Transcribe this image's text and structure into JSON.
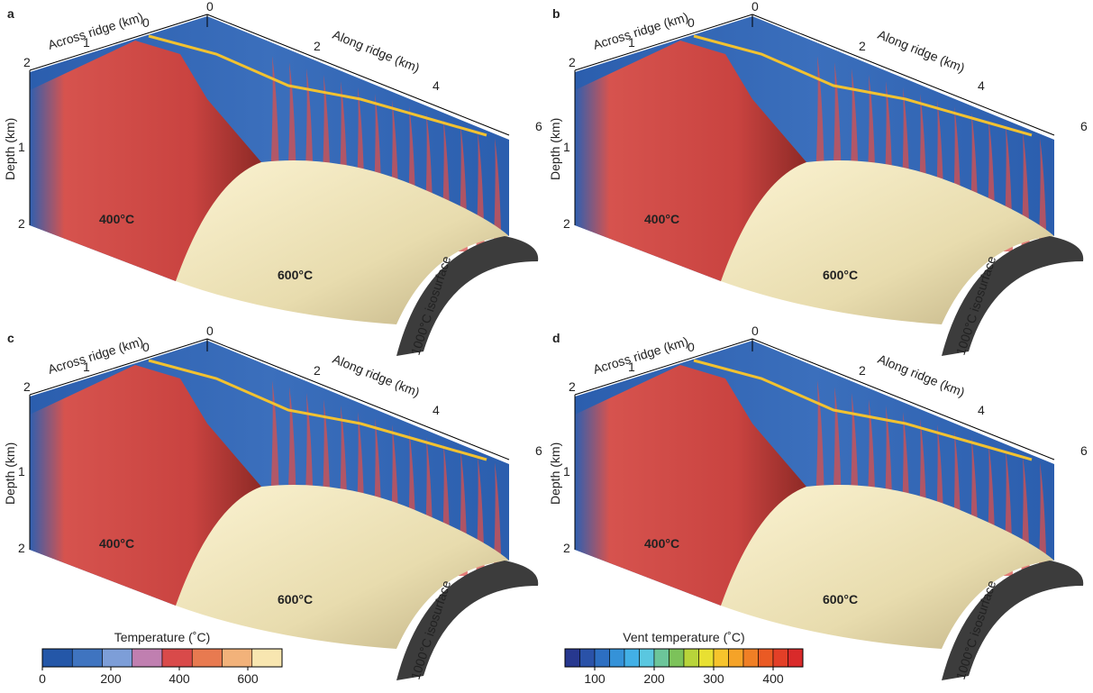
{
  "panels": [
    {
      "label": "a",
      "across_label": "Across ridge (km)",
      "along_label": "Along ridge (km)",
      "depth_label": "Depth (km)",
      "across_ticks": [
        "2",
        "1",
        "0"
      ],
      "along_ticks": [
        "0",
        "2",
        "4",
        "6"
      ],
      "depth_ticks": [
        "1",
        "2"
      ],
      "low_label": "400°C",
      "high_label": "600°C",
      "isosurface_label": "1000°C isosurface"
    },
    {
      "label": "b",
      "across_label": "Across ridge (km)",
      "along_label": "Along ridge (km)",
      "depth_label": "Depth (km)",
      "across_ticks": [
        "2",
        "1",
        "0"
      ],
      "along_ticks": [
        "0",
        "2",
        "4",
        "6"
      ],
      "depth_ticks": [
        "1",
        "2"
      ],
      "low_label": "400°C",
      "high_label": "600°C",
      "isosurface_label": "1000°C isosurface"
    },
    {
      "label": "c",
      "across_label": "Across ridge (km)",
      "along_label": "Along ridge (km)",
      "depth_label": "Depth (km)",
      "across_ticks": [
        "2",
        "1",
        "0"
      ],
      "along_ticks": [
        "0",
        "2",
        "4",
        "6"
      ],
      "depth_ticks": [
        "1",
        "2"
      ],
      "low_label": "400°C",
      "high_label": "600°C",
      "isosurface_label": "1000°C isosurface"
    },
    {
      "label": "d",
      "across_label": "Across ridge (km)",
      "along_label": "Along ridge (km)",
      "depth_label": "Depth (km)",
      "across_ticks": [
        "2",
        "1",
        "0"
      ],
      "along_ticks": [
        "0",
        "2",
        "4",
        "6"
      ],
      "depth_ticks": [
        "1",
        "2"
      ],
      "low_label": "400°C",
      "high_label": "600°C",
      "isosurface_label": "1000°C isosurface"
    }
  ],
  "colorbars": [
    {
      "title": "Temperature (˚C)",
      "range": [
        0,
        700
      ],
      "ticks": [
        0,
        200,
        400,
        600
      ],
      "colors": [
        "#2457a8",
        "#3f74c0",
        "#7d9ed8",
        "#c07fb0",
        "#d94a4a",
        "#e87a50",
        "#f2b27a",
        "#f8e6b0"
      ]
    },
    {
      "title": "Vent temperature (˚C)",
      "range": [
        50,
        450
      ],
      "ticks": [
        100,
        200,
        300,
        400
      ],
      "colors": [
        "#27388f",
        "#2a52a8",
        "#2d6fc2",
        "#3592d8",
        "#42b0e6",
        "#5ac7e0",
        "#6cc59a",
        "#7cc25a",
        "#b8d43a",
        "#e8e032",
        "#f7c42c",
        "#f5a328",
        "#f07f25",
        "#ea5a24",
        "#e33f27",
        "#d92a2a"
      ]
    }
  ]
}
